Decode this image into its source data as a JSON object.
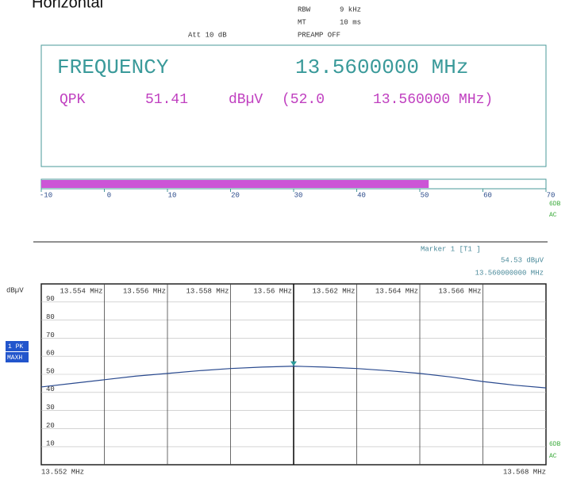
{
  "header": {
    "title": "Horizontal",
    "rbw_label": "RBW",
    "rbw": "9 kHz",
    "mt_label": "MT",
    "mt": "10 ms",
    "preamp": "PREAMP OFF",
    "att": "Att 10 dB"
  },
  "display": {
    "label": "FREQUENCY",
    "frequency": "13.5600000 MHz",
    "detector": "QPK",
    "level": "51.41",
    "unit": "dBµV",
    "limit": "(52.0",
    "limit_frequency": "13.560000 MHz)"
  },
  "bargraph": {
    "value": 51.41,
    "xlim": [
      -10,
      70
    ],
    "xticks": [
      -10,
      0,
      10,
      20,
      30,
      40,
      50,
      60,
      70
    ],
    "color": "#cc55d6"
  },
  "side_labels": [
    "6DB",
    "AC"
  ],
  "marker": {
    "title": "Marker 1 [T1 ]",
    "level": "54.53 dBµV",
    "frequency": "13.560000000 MHz"
  },
  "trace_labels": [
    "1 PK",
    "MAXH"
  ],
  "chart_data": {
    "type": "line",
    "ylabel": "dBµV",
    "x": [
      13.552,
      13.553,
      13.554,
      13.555,
      13.556,
      13.557,
      13.558,
      13.559,
      13.56,
      13.561,
      13.562,
      13.563,
      13.564,
      13.565,
      13.566,
      13.567,
      13.568
    ],
    "series": [
      {
        "color": "#2a4a8f",
        "values": [
          43,
          45,
          47,
          49,
          50.5,
          52,
          53.2,
          54,
          54.5,
          54,
          53.2,
          52,
          50.5,
          48.5,
          46,
          44,
          42.5
        ]
      }
    ],
    "xlim": [
      13.552,
      13.568
    ],
    "xticks": [
      {
        "value": 13.552,
        "label": "13.552 MHz"
      },
      {
        "value": 13.554,
        "label": "13.554 MHz"
      },
      {
        "value": 13.556,
        "label": "13.556 MHz"
      },
      {
        "value": 13.558,
        "label": "13.558 MHz"
      },
      {
        "value": 13.56,
        "label": "13.56 MHz"
      },
      {
        "value": 13.562,
        "label": "13.562 MHz"
      },
      {
        "value": 13.564,
        "label": "13.564 MHz"
      },
      {
        "value": 13.566,
        "label": "13.566 MHz"
      },
      {
        "value": 13.568,
        "label": "13.568 MHz"
      }
    ],
    "ylim": [
      0,
      100
    ],
    "yticks": [
      10,
      20,
      30,
      40,
      50,
      60,
      70,
      80,
      90
    ],
    "grid": true,
    "marker": {
      "x": 13.56,
      "y": 54.53,
      "color": "#2a9a9a"
    }
  }
}
